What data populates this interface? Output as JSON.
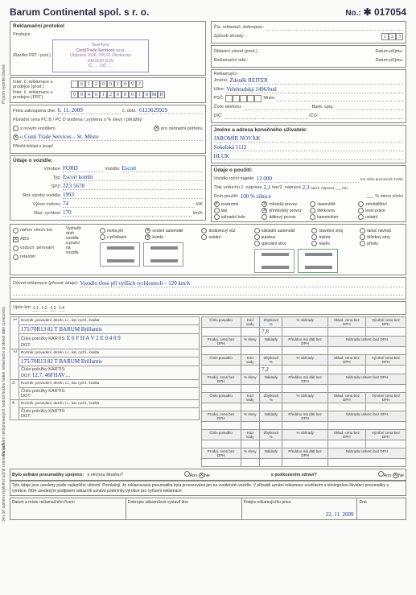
{
  "header": {
    "company": "Barum Continental spol. s r. o.",
    "no_label": "No.:",
    "no_value": "✱ 017054"
  },
  "side": {
    "s1": "Prosím vyplňte čitelně",
    "s2": "Po selhání reklamovaných hodnot budou řádek reklamační protokol dále zpracován.",
    "s3": "Jen při úplném vyplnění tučně orámovaných"
  },
  "left": {
    "protocol_title": "Reklamační protokol",
    "prodejce": "Prodejce",
    "razitko": "(Razítko PRT / prod.)",
    "stamp": {
      "l1": "Best4you",
      "l2": "ContiTrade Services s.r.o.",
      "l3": "Objízdná 1628, 765 01 Otrokovice",
      "l4": "REGION ZLÍN",
      "l5": "IČ: …  DIČ: …"
    },
    "intc1": "Inter. č. reklamace u prodejce (prod.)",
    "intc1_cells": [
      "",
      "6",
      "1",
      "2",
      "0",
      "0",
      "1",
      "0",
      "V",
      "J"
    ],
    "intc2": "Inter. č. reklamace u prodejce (PRT)",
    "intc2_cells": [
      "0",
      "0",
      "4",
      "6",
      "1",
      "2",
      "0",
      "0",
      "0",
      "1",
      "0",
      "M",
      "H"
    ],
    "pneu_date_lbl": "Pneu zakoupena dne:",
    "pneu_date": "6. 11. 2009",
    "cdokl_lbl": "č. dokl.:",
    "cdokl": "6123629929",
    "pcb": "Původní cena PC B / PC D snížena / zvýšena o % slevy / přirážky:",
    "novym": "s novým vozidlem",
    "nahradni": "pro náhradní potřebu",
    "u_lbl": "u",
    "u_val": "Conti Trade Services – St. Město",
    "priloz": "Přiložit doklad o koupi!"
  },
  "right": {
    "cis_lbl": "Čís. reklamač. dobropisu:",
    "zpusob_lbl": "Způsob úhrady:",
    "zpusob_cells": [
      "1",
      "2",
      "3"
    ],
    "zavod": "Oblastní závod (prod.)",
    "odd": "Reklamační odd.:",
    "datum_prijmu": "Datum příjmu:",
    "datum_prijmu2": "Datum příjmu:",
    "reklamujici": "Reklamující:",
    "jmeno_lbl": "Jméno:",
    "jmeno": "Zdeněk  REITER",
    "ulice_lbl": "Ulice:",
    "ulice": "Velehradská  1496/bud",
    "psc_lbl": "PSČ:",
    "psc_cells": [
      "",
      "",
      "",
      "",
      ""
    ],
    "misto_lbl": "Místo:",
    "misto": "",
    "tel_lbl": "Číslo telefonu:",
    "bank_lbl": "Bank. spoj.:",
    "dic_lbl": "DIČ:",
    "ico_lbl": "IČO:",
    "konecny": "Jméno a adresa konečného uživatele:",
    "konecny_name": "JAROMÍR  NOVÁK",
    "konecny_addr": "Sokolská  1112",
    "konecny_city": "HLUK"
  },
  "vozidlo": {
    "title": "Údaje o vozidle:",
    "vyrobce_lbl": "Výrobce:",
    "vyrobce": "FORD",
    "vozidlo_lbl": "Vozidlo:",
    "vozidlo": "Escort",
    "typ_lbl": "Typ:",
    "typ": "Escort kombi",
    "spz_lbl": "SPZ:",
    "spz": "2Z3  5678",
    "rok_lbl": "Rok výroby vozidla:",
    "rok": "1993",
    "vykon_lbl": "Výkon motoru:",
    "vykon": "74",
    "kw": "kW",
    "rychlost_lbl": "Max. rychlost:",
    "rychlost": "170",
    "kmh": "km/h"
  },
  "pouziti": {
    "title": "Údaje o použití:",
    "rocni_lbl": "Vozidlo roční najede:",
    "rocni": "12 000",
    "km": "km nebo provozních hodin",
    "tlak_lbl": "Tlak vzduchu 1. náprava",
    "tlak1": "2,1",
    "tlak_mid": "bar/2. náprava",
    "tlak2": "2,3",
    "tlak_end": "bar/3. náprava ___ bar",
    "druh_lbl": "Druh použití:",
    "silnice": "100 % silnice",
    "mimo": "___ % mimo silnici",
    "u": {
      "soukrome": "soukromé",
      "mestsky": "městský provoz",
      "staveniste": "staveniště",
      "zemedelstvi": "zemědělství",
      "taxi": "taxi",
      "primestsky": "příměstský provoz",
      "sterkovna": "štěrkovna",
      "lesni": "lesní práce",
      "nahradni": "náhradní kolo",
      "dalkovy": "dálkový provoz",
      "kamenolom": "kamenolom",
      "ostatni": "ostatní"
    }
  },
  "mid": {
    "nahon_lbl": "náhon všech kol",
    "vyznac": "Vyznačit",
    "druh": "druh",
    "vozidla": "vozidla",
    "apozici": "a pozici",
    "na": "na",
    "vozidle": "vozidle",
    "abs": "ABS",
    "vzduch": "vzduch. pérování",
    "retarder": "retardér",
    "opts": {
      "motocykl": "motocykl",
      "osobni": "osobní automobil",
      "dodavkovy": "dodávkový vůz",
      "spravodaj": "",
      "kombi": "kombi",
      "ostatni": "ostatní",
      "spozoru": "s přívěsem",
      "nakladni": "nákladní automobil",
      "stavebni": "stavební stroj",
      "tahac": "tahač návěsů",
      "prives": "přívěs",
      "autobus": "autobus",
      "traktor": "traktor",
      "tezebny": "těžebný stroj",
      "zvedaci": "s nástavbou/kontejner",
      "specialni": "speciální stroj",
      "manevr": "návěs"
    }
  },
  "duvod": {
    "lbl": "Důvod reklamace (přesné údaje):",
    "txt": "Vozidlo třese při vyšších rychlostech – 120 km/h"
  },
  "ujeto": {
    "lbl": "Ujeto km:",
    "c1": "č.1",
    "c2": "č.2",
    "c3": "č.3",
    "c4": "č.4"
  },
  "tires": {
    "left_headers": {
      "rozmer": "Rozměr, provedení, dezén, LI., kat. rychl., kvalita",
      "kartis": "Číslo položky KARTIS:",
      "dot": "DOT:"
    },
    "right_headers": {
      "cislo": "Číslo posudku",
      "kod": "Kód vady",
      "zbyt": "Zbytková %",
      "nahr": "% náhrady",
      "sklad": "Sklad. cena bez DPH",
      "vyr": "Výrobní cena bez DPH",
      "prodej": "Prodej. cena bez DPH",
      "slevy": "% slevy",
      "naklady": "Náklady",
      "predano": "Předáno má dáti bez DPH",
      "nahrada": "Náhrada celkem bez DPH"
    },
    "t1": {
      "rozmer": "175/70R13  82 T  BARUM  Brillantis",
      "kartis_cells": [
        "E",
        "6",
        "F",
        "H",
        "A",
        "V",
        "2",
        "E",
        "",
        "0",
        "",
        "4",
        "",
        "0",
        "9"
      ],
      "dot": "",
      "zbyt": "7,8"
    },
    "t2": {
      "rozmer": "175/70R13  82 T  BARUM  Brillantis",
      "kartis_cells": [
        "",
        "",
        "",
        "",
        "",
        "",
        "",
        "",
        "",
        "",
        "",
        "",
        "",
        "",
        ""
      ],
      "dot": "12.7. 46FHAV…",
      "zbyt": "7,2"
    }
  },
  "footer": {
    "q": "Bylo selhání pneumatiky spojeno:",
    "q1": "s věcnou škodou?",
    "q2": "s poškozením zdraví?",
    "ano": "Ano",
    "ne": "Ne",
    "disclaimer": "Tyto údaje jsou uvedeny podle nejlepšího vědomí. Prohlašuji, že reklamovaná pneumatika byla provozována jen na uvedeném vozidle. V případě uznání reklamace souhlasím s ekologickou likvidací pneumatiky u výrobce. Níže uvedeným podpisem zákazník uznává podmínky výrobce pro vyřízení reklamace.",
    "sig1": "Datum a místo reklamačního řízení",
    "sig2": "Dobropis zákazníkovi vystavil dne",
    "sig3": "Podpis reklamujícího pneu",
    "sig4": "Dne",
    "date": "22. 11. 2009"
  }
}
